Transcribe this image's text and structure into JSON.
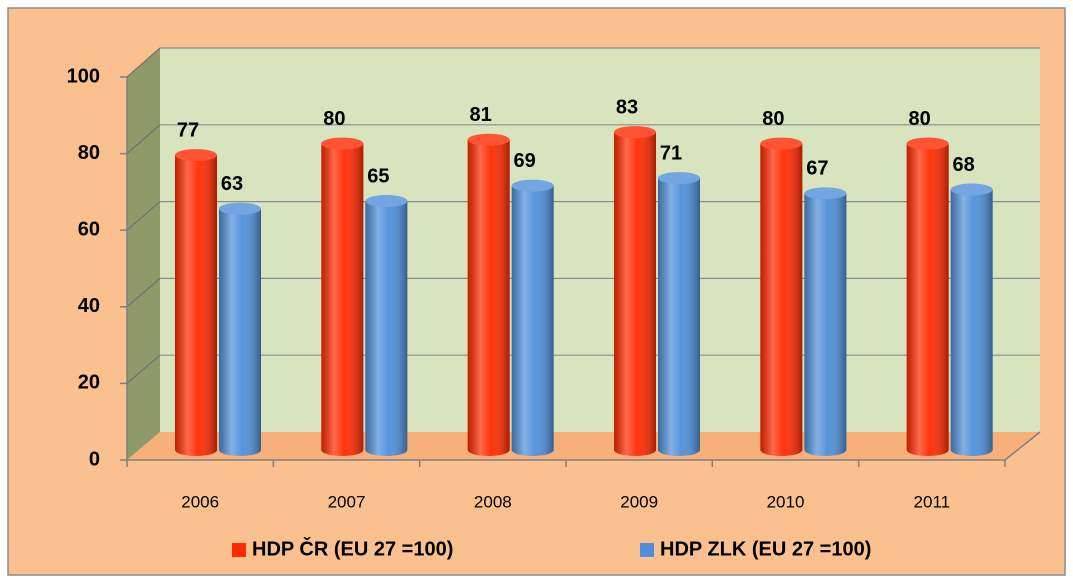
{
  "chart_data": {
    "type": "bar3d",
    "categories": [
      "2006",
      "2007",
      "2008",
      "2009",
      "2010",
      "2011"
    ],
    "series": [
      {
        "name": "HDP ČR (EU 27 =100)",
        "color": "#ff2a00",
        "values": [
          77,
          80,
          81,
          83,
          80,
          80
        ]
      },
      {
        "name": "HDP ZLK (EU 27 =100)",
        "color": "#4f8fda",
        "values": [
          63,
          65,
          69,
          71,
          67,
          68
        ]
      }
    ],
    "ylim": [
      0,
      100
    ],
    "yticks": [
      0,
      20,
      40,
      60,
      80,
      100
    ],
    "grid": true,
    "legend": "bottom"
  }
}
